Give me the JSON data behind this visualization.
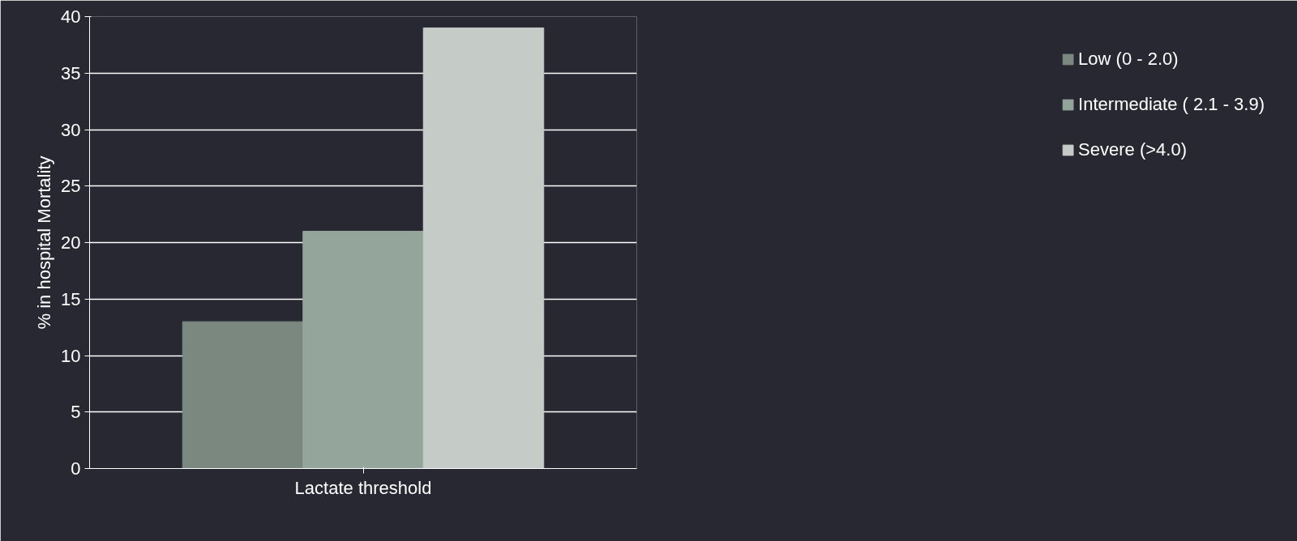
{
  "chart_data": {
    "type": "bar",
    "xlabel": "Lactate threshold",
    "ylabel": "% in hospital Mortality",
    "categories": [
      null
    ],
    "series": [
      {
        "name": "Low (0 - 2.0)",
        "color": "#7a8880",
        "values": [
          13
        ]
      },
      {
        "name": "Intermediate ( 2.1 - 3.9)",
        "color": "#94a59b",
        "values": [
          21
        ]
      },
      {
        "name": "Severe (>4.0)",
        "color": "#c5cbc6",
        "values": [
          39
        ]
      }
    ],
    "ylim": [
      0,
      40
    ],
    "yticks": [
      0,
      5,
      10,
      15,
      20,
      25,
      30,
      35,
      40
    ],
    "grid": "y",
    "legend": "right"
  }
}
